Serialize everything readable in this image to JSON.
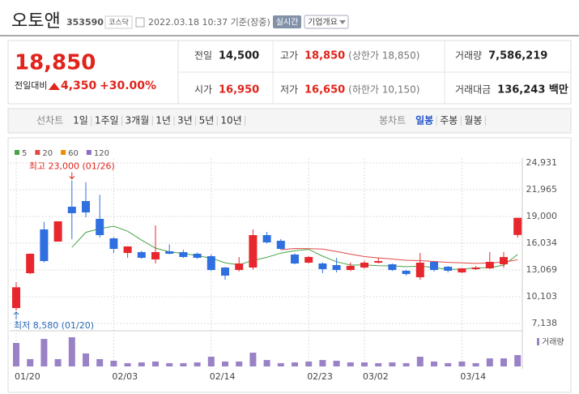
{
  "header": {
    "name": "오토앤",
    "code": "353590",
    "market": "코스닥",
    "timestamp": "2022.03.18 10:37 기준(장중)",
    "realtime_button": "실시간",
    "company_button": "기업개요"
  },
  "quote": {
    "price": "18,850",
    "change_label": "전일대비",
    "change": "4,350",
    "change_rate": "+30.00%"
  },
  "stats": [
    {
      "label": "전일",
      "value": "14,500"
    },
    {
      "label": "고가",
      "value": "18,850",
      "note": "(상한가 18,850)",
      "highlight": true
    },
    {
      "label": "거래량",
      "value": "7,586,219"
    },
    {
      "label": "시가",
      "value": "16,950",
      "highlight": true
    },
    {
      "label": "저가",
      "value": "16,650",
      "note": "(하한가 10,150)",
      "highlight": true
    },
    {
      "label": "거래대금",
      "value": "136,243 백만"
    }
  ],
  "tabs": {
    "line_label": "선차트",
    "line_periods": [
      "1일",
      "1주일",
      "3개월",
      "1년",
      "3년",
      "5년",
      "10년"
    ],
    "candle_label": "봉차트",
    "candle_periods": [
      "일봉",
      "주봉",
      "월봉"
    ],
    "active": "일봉"
  },
  "chart_data": {
    "type": "candlestick",
    "categories": [
      "01/20",
      null,
      null,
      null,
      null,
      null,
      null,
      "02/03",
      null,
      null,
      null,
      null,
      null,
      null,
      "02/14",
      null,
      null,
      null,
      null,
      null,
      null,
      "02/23",
      null,
      null,
      null,
      "03/02",
      null,
      null,
      null,
      null,
      null,
      null,
      "03/14",
      null,
      null,
      null,
      null
    ],
    "open": [
      8850,
      12709,
      17562,
      16214,
      20078,
      20707,
      18730,
      16574,
      14956,
      15046,
      14237,
      15136,
      15046,
      14866,
      14597,
      13338,
      13069,
      13338,
      16933,
      16304,
      14776,
      13878,
      13788,
      13608,
      13069,
      13338,
      13878,
      13698,
      12979,
      12260,
      13968,
      13428,
      12799,
      13158,
      13248,
      13698,
      16950
    ],
    "high": [
      11700,
      14900,
      18400,
      18460,
      23000,
      22800,
      21400,
      16700,
      15700,
      15200,
      18000,
      15900,
      15300,
      15000,
      14800,
      13400,
      14500,
      17560,
      17290,
      16500,
      14900,
      14600,
      13900,
      14420,
      13900,
      14100,
      14420,
      13800,
      13070,
      14950,
      14000,
      13500,
      13300,
      13500,
      15050,
      15050,
      18850
    ],
    "low": [
      8580,
      12600,
      13900,
      16200,
      16480,
      18910,
      16660,
      14960,
      14420,
      14300,
      13790,
      14800,
      14400,
      14300,
      12950,
      11990,
      12900,
      13100,
      16000,
      15300,
      13700,
      13800,
      12710,
      12800,
      12950,
      13200,
      13800,
      12950,
      12440,
      11990,
      12900,
      12800,
      12700,
      13070,
      13160,
      13300,
      16650
    ],
    "close": [
      11150,
      14866,
      14057,
      18460,
      19359,
      19449,
      16933,
      15405,
      15675,
      14417,
      15046,
      14866,
      14507,
      14417,
      13069,
      12440,
      13788,
      16933,
      16124,
      15405,
      13788,
      14507,
      13158,
      13069,
      13518,
      13878,
      14057,
      13069,
      12620,
      13878,
      13069,
      12979,
      13248,
      13338,
      13968,
      14500,
      18850
    ],
    "volume": [
      15700000,
      4900000,
      18400000,
      4900000,
      19500000,
      8700000,
      4900000,
      3800000,
      2200000,
      2700000,
      3300000,
      2200000,
      2200000,
      2700000,
      6500000,
      3300000,
      3300000,
      9200000,
      4300000,
      2200000,
      2700000,
      3300000,
      4300000,
      3800000,
      2700000,
      2700000,
      2200000,
      2700000,
      2200000,
      6500000,
      3300000,
      2200000,
      3300000,
      2200000,
      5400000,
      5400000,
      7586219
    ],
    "up_color": "#e8262d",
    "down_color": "#2f6fe0",
    "volume_color": "#9a82c6",
    "ma_series": [
      {
        "name": "5",
        "color": "#47a447"
      },
      {
        "name": "20",
        "color": "#e04848"
      },
      {
        "name": "60",
        "color": "#f08c00"
      },
      {
        "name": "120",
        "color": "#8e6cc9"
      }
    ],
    "volume_label": "거래량",
    "high_label": "최고 23,000 (01/26)",
    "low_label": "최저 8,580 (01/20)",
    "ylim": [
      7138,
      24931
    ],
    "yticks": [
      {
        "value": 24931,
        "label": "24,931"
      },
      {
        "value": 21965,
        "label": "21,965"
      },
      {
        "value": 19000,
        "label": "19,000"
      },
      {
        "value": 16034,
        "label": "16,034"
      },
      {
        "value": 13069,
        "label": "13,069"
      },
      {
        "value": 10103,
        "label": "10,103"
      },
      {
        "value": 7138,
        "label": "7,138"
      }
    ],
    "grid": true
  }
}
